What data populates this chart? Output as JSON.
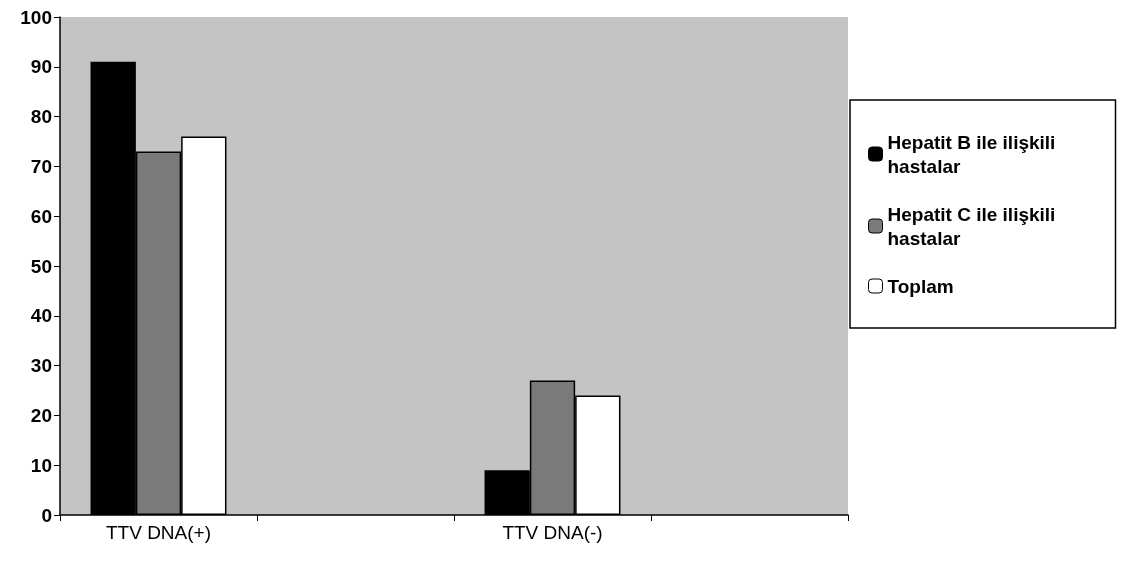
{
  "chart_data": {
    "type": "bar",
    "categories": [
      "TTV DNA(+)",
      null,
      "TTV DNA(-)",
      null
    ],
    "series": [
      {
        "name": "Hepatit B ile ilişkili hastalar",
        "color": "#000000",
        "values": [
          91,
          null,
          9,
          null
        ]
      },
      {
        "name": "Hepatit C ile ilişkili hastalar",
        "color": "#7a7a7a",
        "values": [
          73,
          null,
          27,
          null
        ]
      },
      {
        "name": "Toplam",
        "color": "#ffffff",
        "values": [
          76,
          null,
          24,
          null
        ]
      }
    ],
    "ylim": [
      0,
      100
    ],
    "yticks": [
      0,
      10,
      20,
      30,
      40,
      50,
      60,
      70,
      80,
      90,
      100
    ],
    "grid": false,
    "legend": "right"
  }
}
